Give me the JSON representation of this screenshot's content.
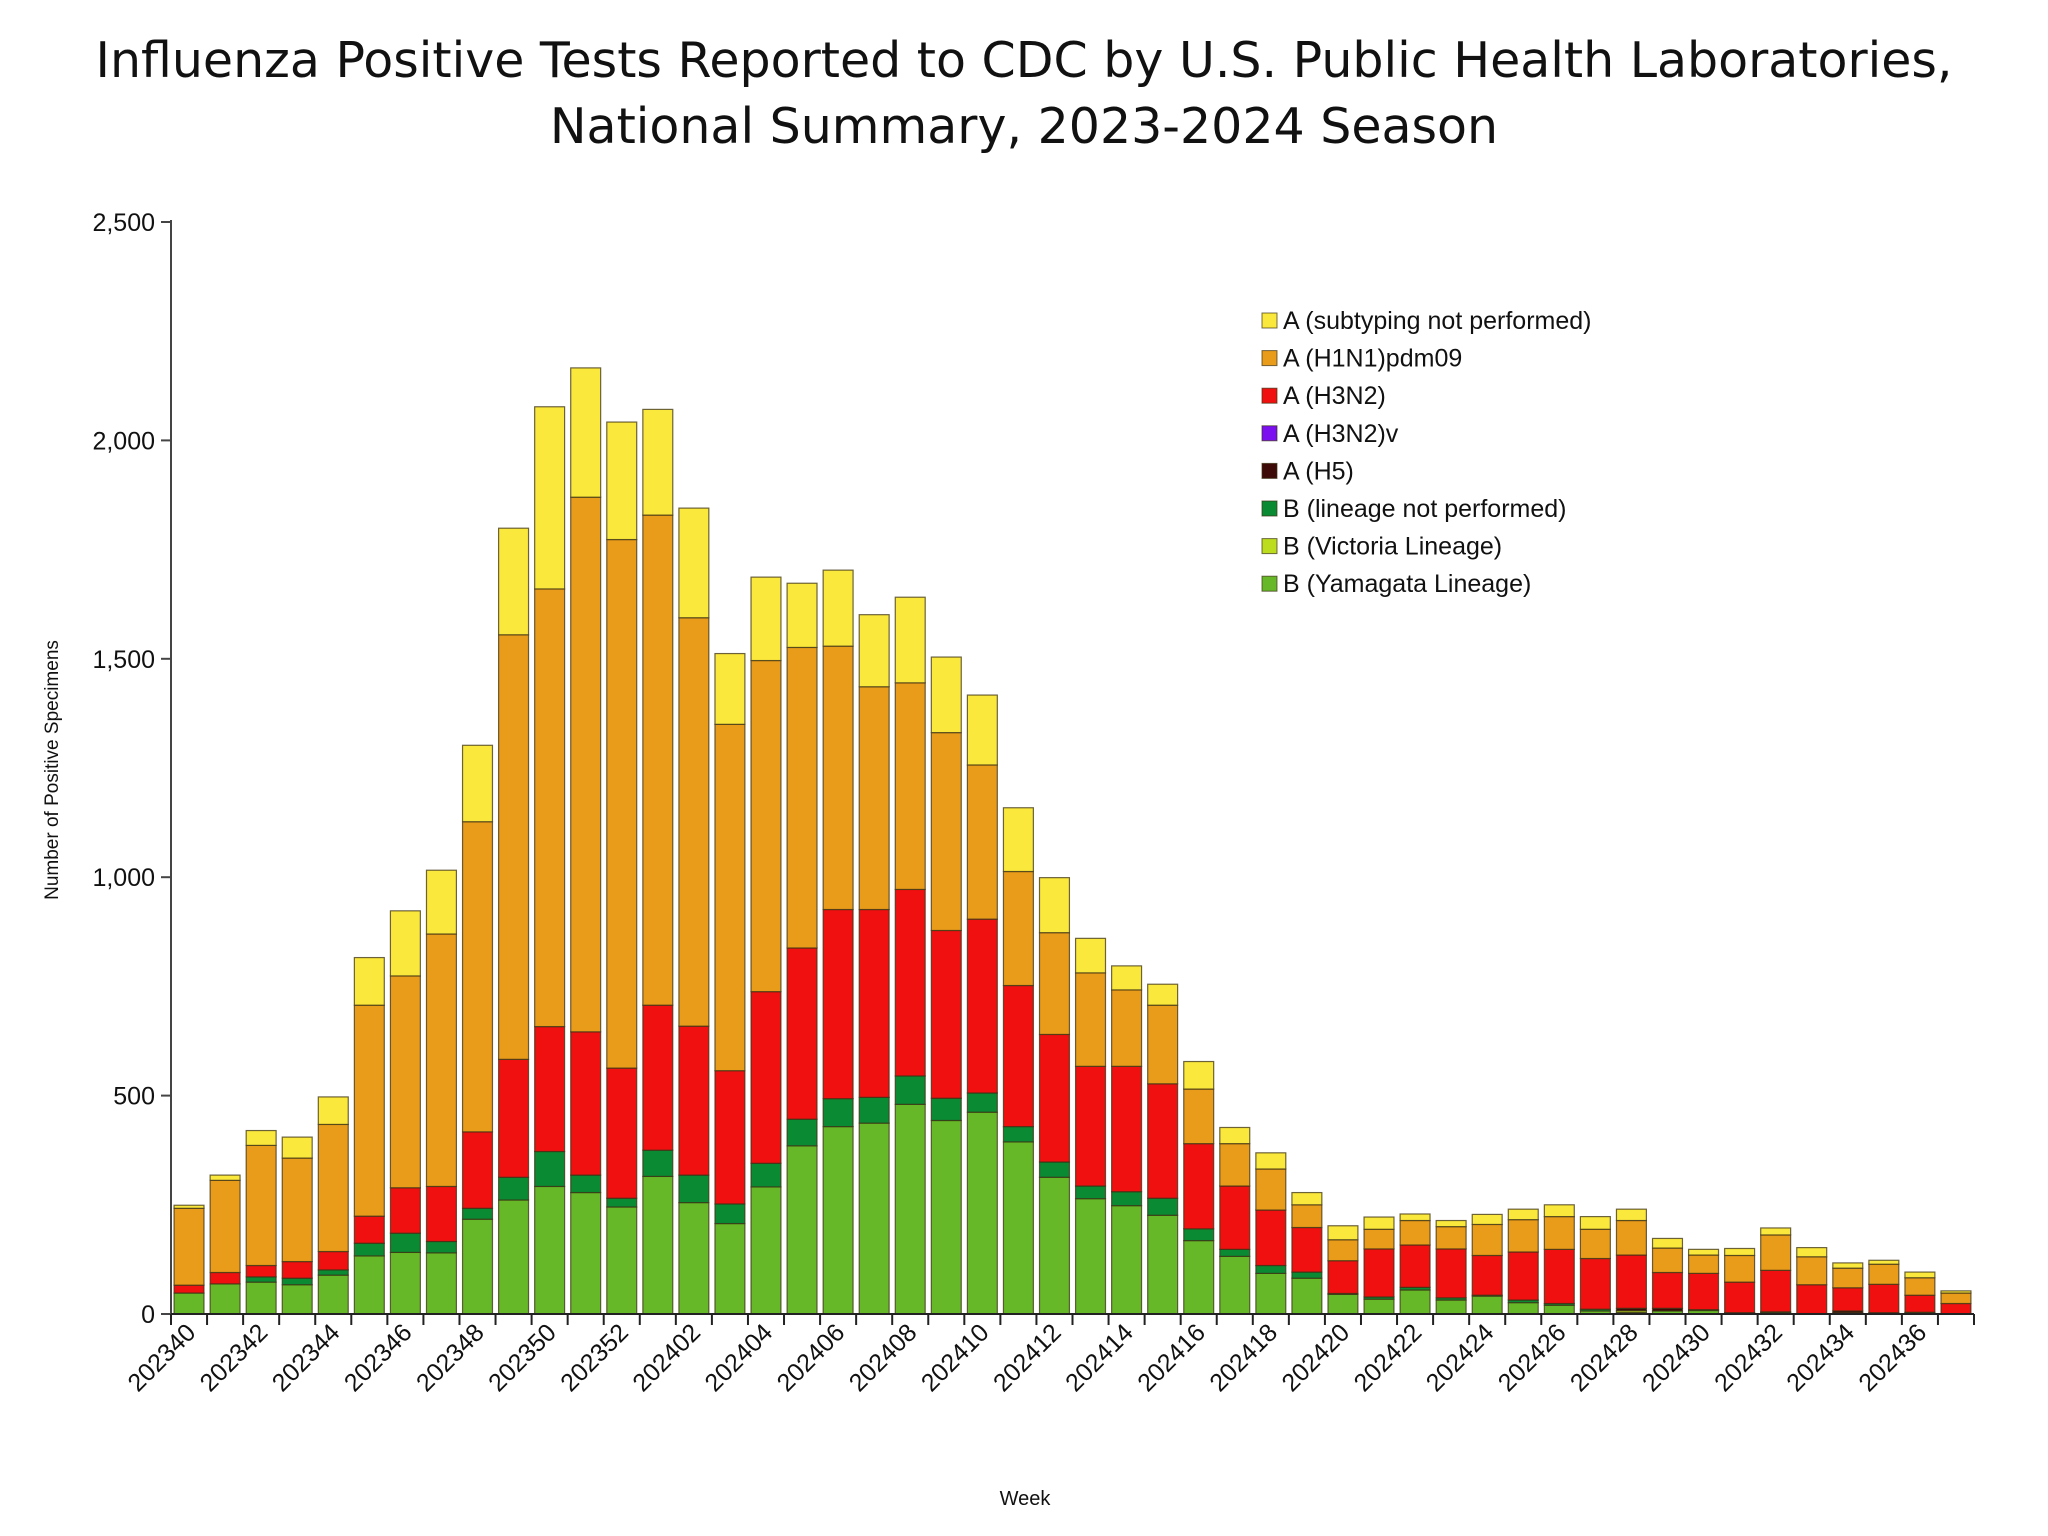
{
  "chart_data": {
    "type": "bar",
    "stacked": true,
    "title": [
      "Influenza Positive Tests Reported to CDC by U.S. Public Health Laboratories,",
      "National Summary, 2023-2024 Season"
    ],
    "xlabel": "Week",
    "ylabel": "Number of Positive Specimens",
    "ylim": [
      0,
      2500
    ],
    "yticks": [
      "0",
      "500",
      "1,000",
      "1,500",
      "2,000",
      "2,500"
    ],
    "ytick_values": [
      0,
      500,
      1000,
      1500,
      2000,
      2500
    ],
    "grid": false,
    "legend_position": "top-right",
    "categories": [
      "202340",
      "202341",
      "202342",
      "202343",
      "202344",
      "202345",
      "202346",
      "202347",
      "202348",
      "202349",
      "202350",
      "202351",
      "202352",
      "202401",
      "202402",
      "202403",
      "202404",
      "202405",
      "202406",
      "202407",
      "202408",
      "202409",
      "202410",
      "202411",
      "202412",
      "202413",
      "202414",
      "202415",
      "202416",
      "202417",
      "202418",
      "202419",
      "202420",
      "202421",
      "202422",
      "202423",
      "202424",
      "202425",
      "202426",
      "202427",
      "202428",
      "202429",
      "202430",
      "202431",
      "202432",
      "202433",
      "202434",
      "202435",
      "202436",
      "202437"
    ],
    "xtick_labels_every": 2,
    "series": [
      {
        "name": "A (subtyping not performed)",
        "color": "#fbe83c",
        "values": [
          7,
          12,
          34,
          48,
          63,
          109,
          149,
          146,
          175,
          244,
          417,
          296,
          269,
          242,
          251,
          162,
          191,
          147,
          174,
          165,
          196,
          173,
          160,
          146,
          126,
          79,
          55,
          48,
          63,
          37,
          37,
          28,
          32,
          28,
          15,
          14,
          23,
          24,
          27,
          29,
          26,
          22,
          13,
          16,
          16,
          21,
          12,
          9,
          13,
          5
        ]
      },
      {
        "name": "A (H1N1)pdm09",
        "color": "#e99b1a",
        "values": [
          176,
          211,
          275,
          237,
          291,
          483,
          485,
          578,
          710,
          972,
          1002,
          1224,
          1210,
          1122,
          935,
          793,
          758,
          688,
          603,
          510,
          473,
          453,
          353,
          261,
          233,
          214,
          175,
          180,
          125,
          97,
          94,
          52,
          48,
          45,
          56,
          51,
          71,
          74,
          75,
          67,
          79,
          56,
          42,
          61,
          81,
          64,
          45,
          46,
          40,
          24
        ]
      },
      {
        "name": "A (H3N2)",
        "color": "#f01010",
        "values": [
          18,
          26,
          26,
          38,
          42,
          62,
          104,
          126,
          175,
          270,
          286,
          328,
          298,
          332,
          341,
          305,
          393,
          392,
          433,
          430,
          427,
          384,
          398,
          323,
          292,
          274,
          287,
          262,
          195,
          145,
          127,
          102,
          75,
          110,
          97,
          112,
          91,
          110,
          124,
          116,
          122,
          82,
          83,
          70,
          95,
          66,
          53,
          65,
          39,
          24
        ]
      },
      {
        "name": "A (H3N2)v",
        "color": "#7b0ff0",
        "values": [
          0,
          0,
          0,
          0,
          0,
          0,
          0,
          0,
          0,
          0,
          0,
          0,
          0,
          0,
          0,
          0,
          0,
          0,
          0,
          0,
          0,
          0,
          0,
          0,
          0,
          0,
          0,
          0,
          0,
          0,
          0,
          0,
          0,
          0,
          0,
          0,
          0,
          0,
          0,
          0,
          0,
          0,
          0,
          0,
          0,
          0,
          0,
          0,
          0,
          0
        ]
      },
      {
        "name": "A (H5)",
        "color": "#3d0a08",
        "values": [
          0,
          0,
          0,
          0,
          0,
          0,
          0,
          0,
          0,
          0,
          0,
          0,
          0,
          0,
          0,
          0,
          0,
          0,
          0,
          0,
          0,
          0,
          0,
          0,
          0,
          0,
          0,
          0,
          0,
          0,
          0,
          0,
          0,
          0,
          0,
          0,
          0,
          0,
          0,
          0,
          5,
          6,
          0,
          0,
          0,
          0,
          4,
          0,
          0,
          0
        ]
      },
      {
        "name": "B (lineage not performed)",
        "color": "#0a8a32",
        "values": [
          0,
          0,
          12,
          15,
          12,
          29,
          44,
          26,
          25,
          52,
          80,
          40,
          20,
          60,
          63,
          45,
          54,
          61,
          64,
          59,
          65,
          51,
          44,
          35,
          35,
          29,
          32,
          39,
          27,
          16,
          18,
          14,
          2,
          5,
          6,
          5,
          2,
          6,
          4,
          4,
          0,
          0,
          2,
          1,
          2,
          0,
          0,
          1,
          2,
          0
        ]
      },
      {
        "name": "B (Victoria Lineage)",
        "color": "#bcdc1e",
        "values": [
          0,
          0,
          0,
          0,
          0,
          0,
          0,
          0,
          0,
          0,
          0,
          0,
          0,
          0,
          0,
          0,
          0,
          0,
          0,
          0,
          0,
          0,
          0,
          0,
          0,
          0,
          0,
          0,
          0,
          0,
          0,
          0,
          0,
          0,
          0,
          0,
          0,
          0,
          0,
          0,
          4,
          0,
          0,
          0,
          0,
          0,
          0,
          0,
          0,
          0
        ]
      },
      {
        "name": "B (Yamagata Lineage)",
        "color": "#66b828",
        "values": [
          48,
          69,
          73,
          67,
          89,
          133,
          141,
          140,
          217,
          261,
          292,
          278,
          245,
          315,
          255,
          207,
          291,
          385,
          429,
          437,
          480,
          443,
          462,
          394,
          313,
          264,
          248,
          226,
          168,
          132,
          93,
          82,
          45,
          34,
          55,
          32,
          41,
          26,
          20,
          7,
          4,
          7,
          8,
          2,
          3,
          1,
          3,
          2,
          2,
          0
        ]
      }
    ]
  }
}
